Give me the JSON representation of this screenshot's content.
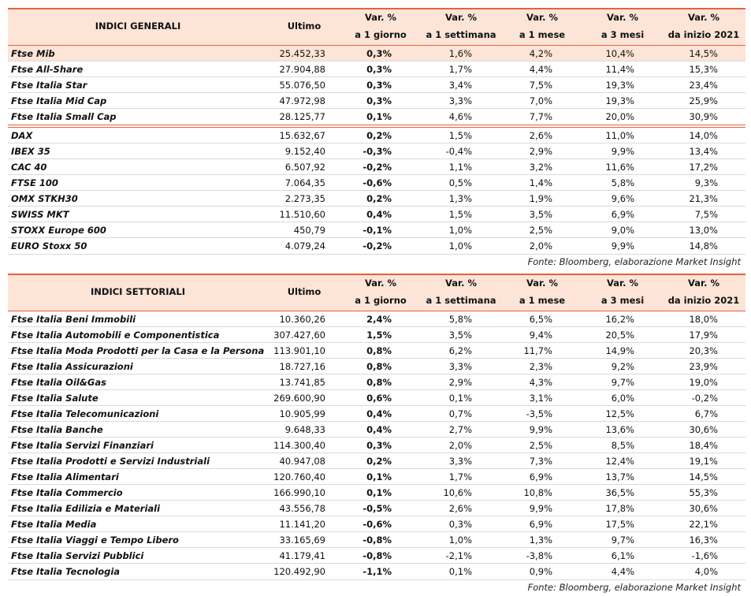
{
  "tables": [
    {
      "header": {
        "title": "INDICI GENERALI",
        "last": "Ultimo",
        "columns": [
          [
            "Var. %",
            "a 1 giorno"
          ],
          [
            "Var. %",
            "a 1 settimana"
          ],
          [
            "Var. %",
            "a 1 mese"
          ],
          [
            "Var. %",
            "a 3 mesi"
          ],
          [
            "Var. %",
            "da inizio 2021"
          ]
        ]
      },
      "groups": [
        [
          [
            "Ftse Mib",
            "25.452,33",
            "0,3%",
            "1,6%",
            "4,2%",
            "10,4%",
            "14,5%"
          ],
          [
            "Ftse All-Share",
            "27.904,88",
            "0,3%",
            "1,7%",
            "4,4%",
            "11,4%",
            "15,3%"
          ],
          [
            "Ftse Italia Star",
            "55.076,50",
            "0,3%",
            "3,4%",
            "7,5%",
            "19,3%",
            "23,4%"
          ],
          [
            "Ftse Italia Mid Cap",
            "47.972,98",
            "0,3%",
            "3,3%",
            "7,0%",
            "19,3%",
            "25,9%"
          ],
          [
            "Ftse Italia Small Cap",
            "28.125,77",
            "0,1%",
            "4,6%",
            "7,7%",
            "20,0%",
            "30,9%"
          ]
        ],
        [
          [
            "DAX",
            "15.632,67",
            "0,2%",
            "1,5%",
            "2,6%",
            "11,0%",
            "14,0%"
          ],
          [
            "IBEX 35",
            "9.152,40",
            "-0,3%",
            "-0,4%",
            "2,9%",
            "9,9%",
            "13,4%"
          ],
          [
            "CAC 40",
            "6.507,92",
            "-0,2%",
            "1,1%",
            "3,2%",
            "11,6%",
            "17,2%"
          ],
          [
            "FTSE 100",
            "7.064,35",
            "-0,6%",
            "0,5%",
            "1,4%",
            "5,8%",
            "9,3%"
          ],
          [
            "OMX STKH30",
            "2.273,35",
            "0,2%",
            "1,3%",
            "1,9%",
            "9,6%",
            "21,3%"
          ],
          [
            "SWISS MKT",
            "11.510,60",
            "0,4%",
            "1,5%",
            "3,5%",
            "6,9%",
            "7,5%"
          ],
          [
            "STOXX Europe 600",
            "450,79",
            "-0,1%",
            "1,0%",
            "2,5%",
            "9,0%",
            "13,0%"
          ],
          [
            "EURO Stoxx 50",
            "4.079,24",
            "-0,2%",
            "1,0%",
            "2,0%",
            "9,9%",
            "14,8%"
          ]
        ]
      ],
      "source": "Fonte: Bloomberg, elaborazione Market Insight"
    },
    {
      "header": {
        "title": "INDICI SETTORIALI",
        "last": "Ultimo",
        "columns": [
          [
            "Var. %",
            "a 1 giorno"
          ],
          [
            "Var. %",
            "a 1 settimana"
          ],
          [
            "Var. %",
            "a 1 mese"
          ],
          [
            "Var. %",
            "a 3 mesi"
          ],
          [
            "Var. %",
            "da inizio 2021"
          ]
        ]
      },
      "groups": [
        [
          [
            "Ftse Italia Beni Immobili",
            "10.360,26",
            "2,4%",
            "5,8%",
            "6,5%",
            "16,2%",
            "18,0%"
          ],
          [
            "Ftse Italia Automobili e Componentistica",
            "307.427,60",
            "1,5%",
            "3,5%",
            "9,4%",
            "20,5%",
            "17,9%"
          ],
          [
            "Ftse Italia Moda Prodotti per la Casa e la Persona",
            "113.901,10",
            "0,8%",
            "6,2%",
            "11,7%",
            "14,9%",
            "20,3%"
          ],
          [
            "Ftse Italia Assicurazioni",
            "18.727,16",
            "0,8%",
            "3,3%",
            "2,3%",
            "9,2%",
            "23,9%"
          ],
          [
            "Ftse Italia Oil&Gas",
            "13.741,85",
            "0,8%",
            "2,9%",
            "4,3%",
            "9,7%",
            "19,0%"
          ],
          [
            "Ftse Italia Salute",
            "269.600,90",
            "0,6%",
            "0,1%",
            "3,1%",
            "6,0%",
            "-0,2%"
          ],
          [
            "Ftse Italia Telecomunicazioni",
            "10.905,99",
            "0,4%",
            "0,7%",
            "-3,5%",
            "12,5%",
            "6,7%"
          ],
          [
            "Ftse Italia Banche",
            "9.648,33",
            "0,4%",
            "2,7%",
            "9,9%",
            "13,6%",
            "30,6%"
          ],
          [
            "Ftse Italia Servizi Finanziari",
            "114.300,40",
            "0,3%",
            "2,0%",
            "2,5%",
            "8,5%",
            "18,4%"
          ],
          [
            "Ftse Italia Prodotti e Servizi Industriali",
            "40.947,08",
            "0,2%",
            "3,3%",
            "7,3%",
            "12,4%",
            "19,1%"
          ],
          [
            "Ftse Italia Alimentari",
            "120.760,40",
            "0,1%",
            "1,7%",
            "6,9%",
            "13,7%",
            "14,5%"
          ],
          [
            "Ftse Italia Commercio",
            "166.990,10",
            "0,1%",
            "10,6%",
            "10,8%",
            "36,5%",
            "55,3%"
          ],
          [
            "Ftse Italia Edilizia e Materiali",
            "43.556,78",
            "-0,5%",
            "2,6%",
            "9,9%",
            "17,8%",
            "30,6%"
          ],
          [
            "Ftse Italia Media",
            "11.141,20",
            "-0,6%",
            "0,3%",
            "6,9%",
            "17,5%",
            "22,1%"
          ],
          [
            "Ftse Italia Viaggi e Tempo Libero",
            "33.165,69",
            "-0,8%",
            "1,0%",
            "1,3%",
            "9,7%",
            "16,3%"
          ],
          [
            "Ftse Italia Servizi Pubblici",
            "41.179,41",
            "-0,8%",
            "-2,1%",
            "-3,8%",
            "6,1%",
            "-1,6%"
          ],
          [
            "Ftse Italia Tecnologia",
            "120.492,90",
            "-1,1%",
            "0,1%",
            "0,9%",
            "4,4%",
            "4,0%"
          ]
        ]
      ],
      "source": "Fonte: Bloomberg, elaborazione Market Insight"
    }
  ]
}
